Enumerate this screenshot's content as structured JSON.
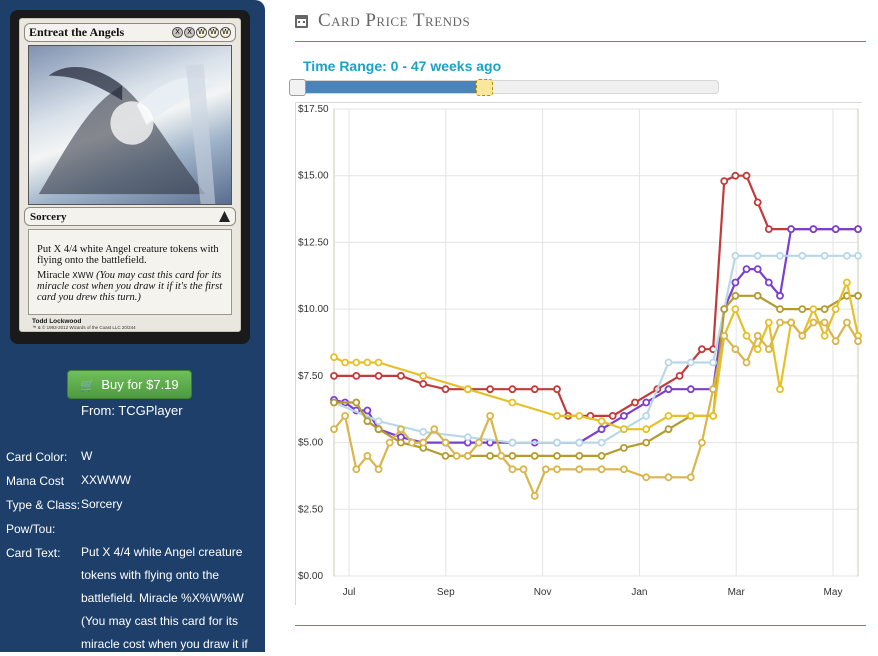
{
  "card": {
    "name": "Entreat the Angels",
    "type_line": "Sorcery",
    "rules_text": "Put X 4/4 white Angel creature tokens with flying onto the battlefield.",
    "miracle_text": "Miracle",
    "miracle_reminder": "(You may cast this card for its miracle cost when you draw it if it's the first card you drew this turn.)",
    "artist": "Todd Lockwood",
    "copyright": "™ & © 1993-2012 Wizards of the Coast LLC 20/244",
    "mana_symbols": [
      "X",
      "X",
      "W",
      "W",
      "W"
    ],
    "miracle_cost_symbols": [
      "X",
      "W",
      "W"
    ]
  },
  "buy": {
    "label": "Buy for $7.19",
    "icon": "cart-icon",
    "from": "From: TCGPlayer",
    "color": "#5cad4a"
  },
  "details": [
    {
      "label": "Card Color:",
      "value": "W"
    },
    {
      "label": "Mana Cost",
      "value": "XXWWW"
    },
    {
      "label": "Type & Class:",
      "value": "Sorcery"
    },
    {
      "label": "Pow/Tou:",
      "value": ""
    },
    {
      "label": "Card Text:",
      "value": "Put X 4/4 white Angel creature tokens with flying onto the battlefield. Miracle %X%W%W (You may cast this card for its miracle cost when you draw it if"
    }
  ],
  "section": {
    "title": "Card Price Trends",
    "icon": "calendar-icon"
  },
  "time_range": {
    "label": "Time Range: 0 - 47 weeks ago",
    "from_weeks": 0,
    "to_weeks": 47
  },
  "colors": {
    "accent": "#1aa3c4",
    "sidebar": "#1d3f6a",
    "slider_fill": "#4c83b8"
  },
  "chart_data": {
    "type": "line",
    "title": "",
    "xlabel": "",
    "ylabel": "",
    "x_ticks": [
      "Jul",
      "Sep",
      "Nov",
      "Jan",
      "Mar",
      "May"
    ],
    "y_ticks": [
      "$0.00",
      "$2.50",
      "$5.00",
      "$7.50",
      "$10.00",
      "$12.50",
      "$15.00",
      "$17.50"
    ],
    "ylim": [
      0,
      17.5
    ],
    "xlim": [
      0,
      47
    ],
    "grid": true,
    "legend": "none",
    "series": [
      {
        "color": "#c23b3b",
        "points": [
          [
            0,
            7.5
          ],
          [
            2,
            7.5
          ],
          [
            4,
            7.5
          ],
          [
            6,
            7.5
          ],
          [
            8,
            7.2
          ],
          [
            10,
            7.0
          ],
          [
            12,
            7.0
          ],
          [
            14,
            7.0
          ],
          [
            16,
            7.0
          ],
          [
            18,
            7.0
          ],
          [
            20,
            7.0
          ],
          [
            21,
            6.0
          ],
          [
            23,
            6.0
          ],
          [
            25,
            6.0
          ],
          [
            27,
            6.5
          ],
          [
            29,
            7.0
          ],
          [
            31,
            7.5
          ],
          [
            33,
            8.5
          ],
          [
            34,
            8.5
          ],
          [
            35,
            14.8
          ],
          [
            36,
            15.0
          ],
          [
            37,
            15.0
          ],
          [
            38,
            14.0
          ],
          [
            39,
            13.0
          ],
          [
            41,
            13.0
          ],
          [
            43,
            13.0
          ],
          [
            45,
            13.0
          ],
          [
            47,
            13.0
          ]
        ]
      },
      {
        "color": "#7a3fd0",
        "points": [
          [
            0,
            6.6
          ],
          [
            1,
            6.5
          ],
          [
            2,
            6.2
          ],
          [
            3,
            6.2
          ],
          [
            4,
            5.5
          ],
          [
            6,
            5.2
          ],
          [
            8,
            5.0
          ],
          [
            10,
            5.0
          ],
          [
            12,
            5.0
          ],
          [
            14,
            5.0
          ],
          [
            16,
            5.0
          ],
          [
            18,
            5.0
          ],
          [
            20,
            5.0
          ],
          [
            22,
            5.0
          ],
          [
            24,
            5.5
          ],
          [
            26,
            6.0
          ],
          [
            28,
            6.5
          ],
          [
            30,
            7.0
          ],
          [
            32,
            7.0
          ],
          [
            34,
            7.0
          ],
          [
            35,
            10.0
          ],
          [
            36,
            11.0
          ],
          [
            37,
            11.5
          ],
          [
            38,
            11.5
          ],
          [
            39,
            11.0
          ],
          [
            40,
            10.5
          ],
          [
            41,
            13.0
          ],
          [
            43,
            13.0
          ],
          [
            45,
            13.0
          ],
          [
            47,
            13.0
          ]
        ]
      },
      {
        "color": "#b8d8e8",
        "points": [
          [
            0,
            6.5
          ],
          [
            4,
            5.8
          ],
          [
            8,
            5.4
          ],
          [
            12,
            5.2
          ],
          [
            16,
            5.0
          ],
          [
            20,
            5.0
          ],
          [
            22,
            5.0
          ],
          [
            24,
            5.0
          ],
          [
            26,
            5.5
          ],
          [
            28,
            6.0
          ],
          [
            30,
            8.0
          ],
          [
            32,
            8.0
          ],
          [
            34,
            8.0
          ],
          [
            35,
            10.0
          ],
          [
            36,
            12.0
          ],
          [
            38,
            12.0
          ],
          [
            40,
            12.0
          ],
          [
            42,
            12.0
          ],
          [
            44,
            12.0
          ],
          [
            46,
            12.0
          ],
          [
            47,
            12.0
          ]
        ]
      },
      {
        "color": "#b59a2e",
        "points": [
          [
            0,
            6.5
          ],
          [
            2,
            6.5
          ],
          [
            3,
            5.8
          ],
          [
            4,
            5.5
          ],
          [
            6,
            5.0
          ],
          [
            8,
            4.8
          ],
          [
            10,
            4.5
          ],
          [
            12,
            4.5
          ],
          [
            14,
            4.5
          ],
          [
            16,
            4.5
          ],
          [
            18,
            4.5
          ],
          [
            20,
            4.5
          ],
          [
            22,
            4.5
          ],
          [
            24,
            4.5
          ],
          [
            26,
            4.8
          ],
          [
            28,
            5.0
          ],
          [
            30,
            5.5
          ],
          [
            32,
            6.0
          ],
          [
            34,
            6.0
          ],
          [
            35,
            10.0
          ],
          [
            36,
            10.5
          ],
          [
            38,
            10.5
          ],
          [
            40,
            10.0
          ],
          [
            42,
            10.0
          ],
          [
            44,
            10.0
          ],
          [
            46,
            10.5
          ],
          [
            47,
            10.5
          ]
        ]
      },
      {
        "color": "#e6c02a",
        "points": [
          [
            0,
            8.2
          ],
          [
            1,
            8.0
          ],
          [
            2,
            8.0
          ],
          [
            3,
            8.0
          ],
          [
            4,
            8.0
          ],
          [
            8,
            7.5
          ],
          [
            12,
            7.0
          ],
          [
            16,
            6.5
          ],
          [
            20,
            6.0
          ],
          [
            22,
            6.0
          ],
          [
            24,
            5.8
          ],
          [
            26,
            5.5
          ],
          [
            28,
            5.5
          ],
          [
            30,
            6.0
          ],
          [
            32,
            6.0
          ],
          [
            34,
            6.0
          ],
          [
            35,
            9.0
          ],
          [
            36,
            10.0
          ],
          [
            37,
            9.0
          ],
          [
            38,
            8.5
          ],
          [
            39,
            9.5
          ],
          [
            40,
            7.0
          ],
          [
            41,
            9.5
          ],
          [
            42,
            9.0
          ],
          [
            43,
            10.0
          ],
          [
            44,
            9.0
          ],
          [
            45,
            10.0
          ],
          [
            46,
            11.0
          ],
          [
            47,
            9.0
          ]
        ]
      },
      {
        "color": "#d9b54a",
        "points": [
          [
            0,
            5.5
          ],
          [
            1,
            6.0
          ],
          [
            2,
            4.0
          ],
          [
            3,
            4.5
          ],
          [
            4,
            4.0
          ],
          [
            5,
            5.0
          ],
          [
            6,
            5.5
          ],
          [
            7,
            5.0
          ],
          [
            8,
            5.0
          ],
          [
            9,
            5.5
          ],
          [
            10,
            5.0
          ],
          [
            11,
            4.5
          ],
          [
            12,
            4.5
          ],
          [
            13,
            5.0
          ],
          [
            14,
            6.0
          ],
          [
            15,
            4.5
          ],
          [
            16,
            4.0
          ],
          [
            17,
            4.0
          ],
          [
            18,
            3.0
          ],
          [
            19,
            4.0
          ],
          [
            20,
            4.0
          ],
          [
            22,
            4.0
          ],
          [
            24,
            4.0
          ],
          [
            26,
            4.0
          ],
          [
            28,
            3.7
          ],
          [
            30,
            3.7
          ],
          [
            32,
            3.7
          ],
          [
            33,
            5.0
          ],
          [
            34,
            7.0
          ],
          [
            35,
            9.0
          ],
          [
            36,
            8.5
          ],
          [
            37,
            8.0
          ],
          [
            38,
            9.0
          ],
          [
            39,
            8.5
          ],
          [
            40,
            9.5
          ],
          [
            41,
            9.5
          ],
          [
            42,
            9.0
          ],
          [
            43,
            9.5
          ],
          [
            44,
            9.5
          ],
          [
            45,
            8.8
          ],
          [
            46,
            9.5
          ],
          [
            47,
            8.8
          ]
        ]
      }
    ]
  }
}
